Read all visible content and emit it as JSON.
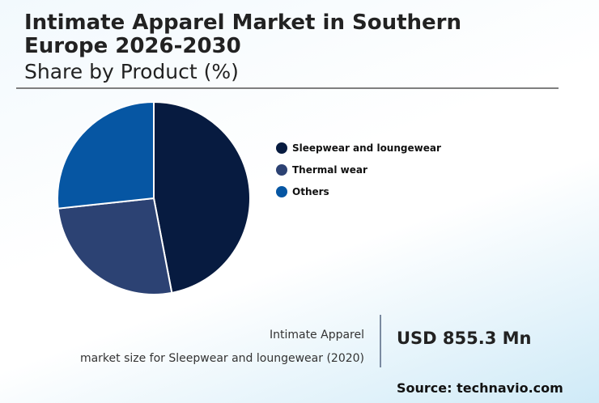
{
  "header": {
    "title": "Intimate Apparel Market in Southern Europe 2026-2030",
    "subtitle": "Share by Product (%)"
  },
  "legend": [
    {
      "label": "Sleepwear and loungewear",
      "color": "#071b40"
    },
    {
      "label": "Thermal wear",
      "color": "#2c4273"
    },
    {
      "label": "Others",
      "color": "#0656a3"
    }
  ],
  "info": {
    "line1": "Intimate Apparel",
    "line2": "market size for Sleepwear and loungewear (2020)",
    "value": "USD 855.3 Mn"
  },
  "source": "Source: technavio.com",
  "chart_data": {
    "type": "pie",
    "title": "Intimate Apparel Market in Southern Europe 2026-2030",
    "subtitle": "Share by Product (%)",
    "categories": [
      "Sleepwear and loungewear",
      "Thermal wear",
      "Others"
    ],
    "values": [
      47,
      26.3,
      26.7
    ],
    "colors": [
      "#071b40",
      "#2c4273",
      "#0656a3"
    ],
    "legend_position": "right",
    "annotations": [
      "Intimate Apparel market size for Sleepwear and loungewear (2020): USD 855.3 Mn"
    ]
  }
}
